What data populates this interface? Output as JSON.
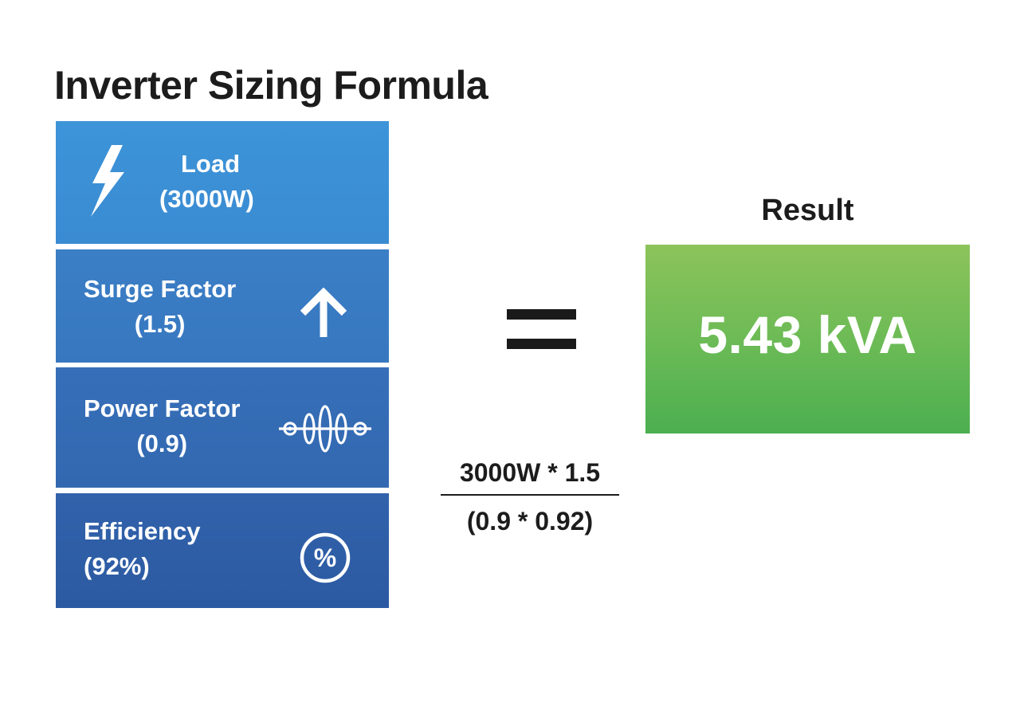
{
  "title": "Inverter Sizing Formula",
  "factors": [
    {
      "label": "Load",
      "value": "(3000W)",
      "icon": "lightning-bolt-icon"
    },
    {
      "label": "Surge Factor",
      "value": "(1.5)",
      "icon": "arrow-up-icon"
    },
    {
      "label": "Power Factor",
      "value": "(0.9)",
      "icon": "sine-wave-icon"
    },
    {
      "label": "Efficiency",
      "value": "(92%)",
      "icon": "percent-circle-icon"
    }
  ],
  "operator": "=",
  "formula": {
    "numerator": "3000W * 1.5",
    "denominator": "(0.9 * 0.92)"
  },
  "result": {
    "label": "Result",
    "value": "5.43 kVA"
  },
  "colors": {
    "factor_blue": "#3a8bd2",
    "result_green": "#6dbb56"
  }
}
